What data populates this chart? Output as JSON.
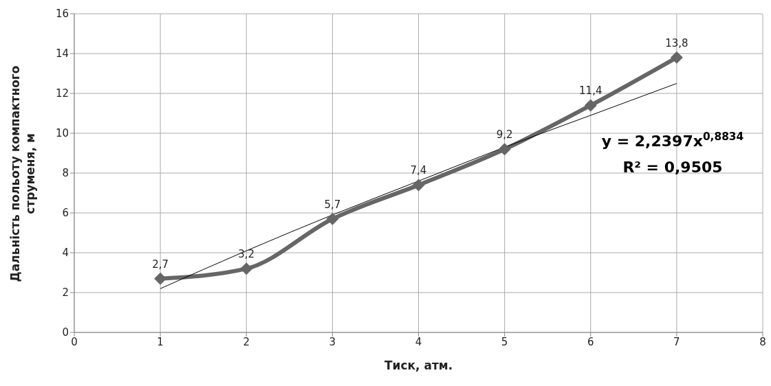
{
  "chart_data": {
    "type": "line",
    "xlabel": "Тиск, атм.",
    "ylabel": "Дальність польоту компактного струменя, м",
    "x": [
      1,
      2,
      3,
      4,
      5,
      6,
      7
    ],
    "series": [
      {
        "color": "#666666",
        "values": [
          2.7,
          3.2,
          5.7,
          7.4,
          9.2,
          11.4,
          13.8
        ],
        "value_labels": [
          "2,7",
          "3,2",
          "5,7",
          "7,4",
          "9,2",
          "11,4",
          "13,8"
        ],
        "marker": "diamond"
      },
      {
        "type": "line",
        "color": "#000000",
        "x": [
          1,
          2,
          3,
          4,
          5,
          6,
          7
        ],
        "values": [
          2.2,
          4.1,
          5.9,
          7.6,
          9.3,
          10.9,
          12.5
        ],
        "marker": "none"
      }
    ],
    "annotations": [
      "y = 2,2397x$^{0,8834}$",
      "R² = 0,9505"
    ],
    "xlim": [
      0,
      8
    ],
    "xticks": [
      0,
      1,
      2,
      3,
      4,
      5,
      6,
      7,
      8
    ],
    "ylim": [
      0,
      16
    ],
    "yticks": [
      0,
      2,
      4,
      6,
      8,
      10,
      12,
      14,
      16
    ],
    "grid": true,
    "legend": false,
    "line_style": "solid"
  }
}
